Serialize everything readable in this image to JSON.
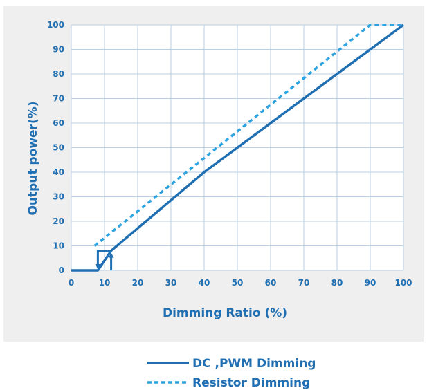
{
  "chart_data": {
    "type": "line",
    "title": "",
    "xlabel": "Dimming  Ratio (%)",
    "ylabel": "Output power(%)",
    "xlim": [
      0,
      100
    ],
    "ylim": [
      0,
      100
    ],
    "x_ticks": [
      0,
      10,
      20,
      30,
      40,
      50,
      60,
      70,
      80,
      90,
      100
    ],
    "y_ticks": [
      0,
      10,
      20,
      30,
      40,
      50,
      60,
      70,
      80,
      90,
      100
    ],
    "grid": true,
    "legend_position": "bottom",
    "series": [
      {
        "name": "DC ,PWM Dimming",
        "style": "solid",
        "color": "#1f6fb2",
        "x": [
          0,
          8,
          12,
          40,
          100
        ],
        "y": [
          0,
          0,
          8,
          40,
          100
        ]
      },
      {
        "name": "Resistor Dimming",
        "style": "dashed",
        "color": "#2aa3e0",
        "x": [
          7,
          90,
          100
        ],
        "y": [
          10,
          100,
          100
        ]
      }
    ],
    "hysteresis": {
      "color": "#1f6fb2",
      "x_down": 8,
      "x_up": 12,
      "y_high": 8,
      "y_low": 0
    }
  }
}
